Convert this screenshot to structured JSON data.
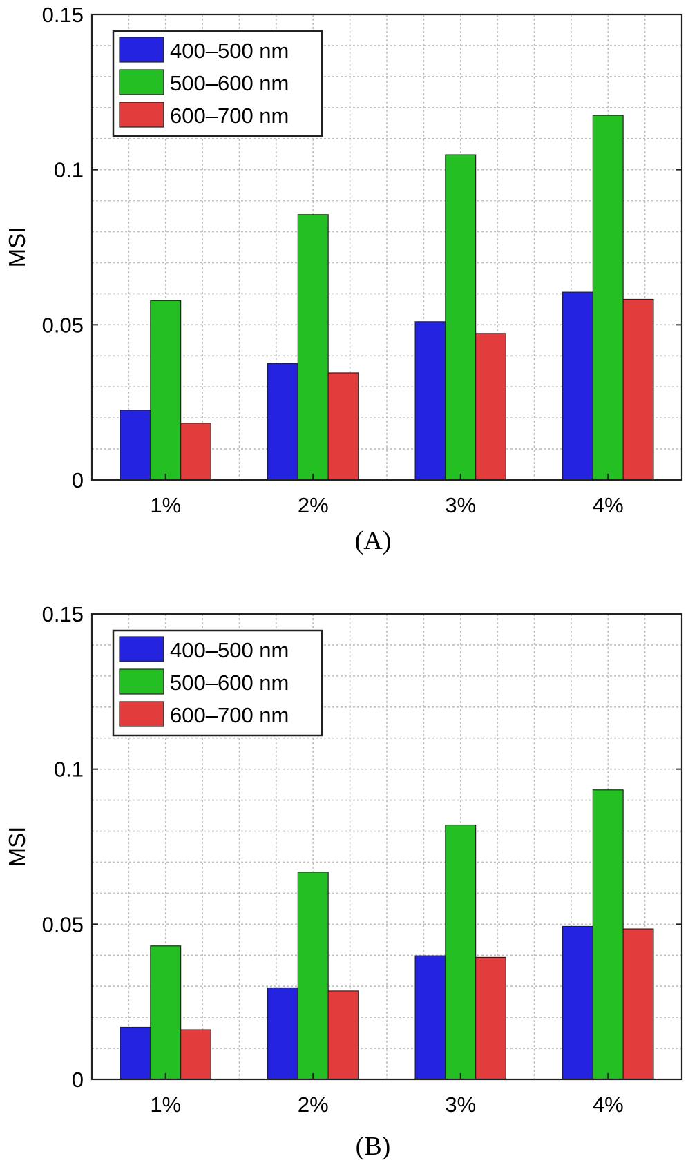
{
  "chart_data": [
    {
      "type": "bar",
      "panel_label": "(A)",
      "categories": [
        "1%",
        "2%",
        "3%",
        "4%"
      ],
      "ylabel": "MSI",
      "xlabel": "",
      "ylim": [
        0,
        0.15
      ],
      "yticks": [
        0,
        0.05,
        0.1,
        0.15
      ],
      "ytick_labels": [
        "0",
        "0.05",
        "0.1",
        "0.15"
      ],
      "grid": true,
      "minor_grid": true,
      "legend_position": "top-left",
      "series": [
        {
          "name": "400–500 nm",
          "color": "#2323e0",
          "values": [
            0.0225,
            0.0375,
            0.051,
            0.0605
          ]
        },
        {
          "name": "500–600 nm",
          "color": "#23bf23",
          "values": [
            0.0578,
            0.0855,
            0.1048,
            0.1175
          ]
        },
        {
          "name": "600–700 nm",
          "color": "#e23c3c",
          "values": [
            0.0183,
            0.0345,
            0.0472,
            0.0582
          ]
        }
      ]
    },
    {
      "type": "bar",
      "panel_label": "(B)",
      "categories": [
        "1%",
        "2%",
        "3%",
        "4%"
      ],
      "ylabel": "MSI",
      "xlabel": "",
      "ylim": [
        0,
        0.15
      ],
      "yticks": [
        0,
        0.05,
        0.1,
        0.15
      ],
      "ytick_labels": [
        "0",
        "0.05",
        "0.1",
        "0.15"
      ],
      "grid": true,
      "minor_grid": true,
      "legend_position": "top-left",
      "series": [
        {
          "name": "400–500 nm",
          "color": "#2323e0",
          "values": [
            0.0168,
            0.0295,
            0.0398,
            0.0493
          ]
        },
        {
          "name": "500–600 nm",
          "color": "#23bf23",
          "values": [
            0.043,
            0.0668,
            0.082,
            0.0933
          ]
        },
        {
          "name": "600–700 nm",
          "color": "#e23c3c",
          "values": [
            0.016,
            0.0285,
            0.0393,
            0.0485
          ]
        }
      ]
    }
  ]
}
